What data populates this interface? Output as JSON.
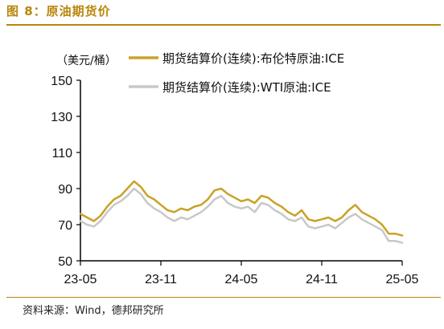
{
  "figure": {
    "title": "图 8：原油期货价",
    "source": "资料来源：Wind，德邦研究所"
  },
  "chart_data": {
    "type": "line",
    "unit_label": "（美元/桶）",
    "ylim": [
      50,
      150
    ],
    "yticks": [
      50,
      70,
      90,
      110,
      130,
      150
    ],
    "xtick_labels": [
      "23-05",
      "23-11",
      "24-05",
      "24-11",
      "25-05"
    ],
    "xlim_months": [
      0,
      24
    ],
    "xtick_months": [
      0,
      6,
      12,
      18,
      24
    ],
    "legend_position": "top",
    "series": [
      {
        "name": "期货结算价(连续):布伦特原油:ICE",
        "color": "#c9a227",
        "x": [
          0,
          0.5,
          1,
          1.5,
          2,
          2.5,
          3,
          3.5,
          4,
          4.5,
          5,
          5.5,
          6,
          6.5,
          7,
          7.5,
          8,
          8.5,
          9,
          9.5,
          10,
          10.5,
          11,
          11.5,
          12,
          12.5,
          13,
          13.5,
          14,
          14.5,
          15,
          15.5,
          16,
          16.5,
          17,
          17.5,
          18,
          18.5,
          19,
          19.5,
          20,
          20.5,
          21,
          21.5,
          22,
          22.5,
          23,
          23.5,
          24
        ],
        "values": [
          76,
          74,
          72,
          75,
          80,
          84,
          86,
          90,
          94,
          91,
          86,
          84,
          81,
          78,
          77,
          79,
          78,
          80,
          81,
          84,
          89,
          90,
          87,
          85,
          83,
          84,
          82,
          86,
          85,
          82,
          80,
          77,
          75,
          78,
          73,
          72,
          73,
          74,
          72,
          74,
          78,
          81,
          77,
          75,
          73,
          70,
          65,
          65,
          64
        ]
      },
      {
        "name": "期货结算价(连续):WTI原油:ICE",
        "color": "#c8c8c8",
        "x": [
          0,
          0.5,
          1,
          1.5,
          2,
          2.5,
          3,
          3.5,
          4,
          4.5,
          5,
          5.5,
          6,
          6.5,
          7,
          7.5,
          8,
          8.5,
          9,
          9.5,
          10,
          10.5,
          11,
          11.5,
          12,
          12.5,
          13,
          13.5,
          14,
          14.5,
          15,
          15.5,
          16,
          16.5,
          17,
          17.5,
          18,
          18.5,
          19,
          19.5,
          20,
          20.5,
          21,
          21.5,
          22,
          22.5,
          23,
          23.5,
          24
        ],
        "values": [
          72,
          70,
          69,
          72,
          77,
          81,
          83,
          86,
          90,
          87,
          82,
          79,
          77,
          74,
          72,
          74,
          73,
          75,
          77,
          80,
          84,
          86,
          82,
          80,
          79,
          80,
          77,
          82,
          81,
          78,
          76,
          73,
          72,
          74,
          69,
          68,
          69,
          70,
          68,
          71,
          74,
          76,
          73,
          71,
          69,
          67,
          61,
          61,
          60
        ]
      }
    ]
  }
}
